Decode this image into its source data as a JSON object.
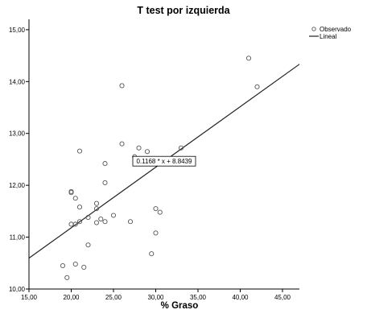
{
  "chart_data": {
    "type": "scatter",
    "title": "T test por izquierda",
    "xlabel": "% Graso",
    "ylabel": "",
    "xlim": [
      15,
      47
    ],
    "ylim": [
      10,
      15.2
    ],
    "x_ticks": [
      "15,00",
      "20,00",
      "25,00",
      "30,00",
      "35,00",
      "40,00",
      "45,00"
    ],
    "y_ticks": [
      "10,00",
      "11,00",
      "12,00",
      "13,00",
      "14,00",
      "15,00"
    ],
    "x_tick_values": [
      15,
      20,
      25,
      30,
      35,
      40,
      45
    ],
    "y_tick_values": [
      10,
      11,
      12,
      13,
      14,
      15
    ],
    "grid": false,
    "legend_position": "top-right",
    "legend": [
      {
        "label": "Observado",
        "marker": "circle"
      },
      {
        "label": "Lineal",
        "marker": "line"
      }
    ],
    "series": [
      {
        "name": "Observado",
        "points": [
          [
            19.0,
            10.45
          ],
          [
            19.5,
            10.22
          ],
          [
            20.0,
            11.25
          ],
          [
            20.0,
            11.88
          ],
          [
            20.0,
            11.86
          ],
          [
            20.5,
            11.75
          ],
          [
            20.5,
            10.48
          ],
          [
            20.5,
            11.25
          ],
          [
            21.0,
            11.3
          ],
          [
            21.0,
            11.58
          ],
          [
            21.0,
            12.66
          ],
          [
            21.5,
            10.42
          ],
          [
            22.0,
            10.85
          ],
          [
            22.0,
            11.38
          ],
          [
            23.0,
            11.28
          ],
          [
            23.0,
            11.55
          ],
          [
            23.0,
            11.65
          ],
          [
            23.5,
            11.35
          ],
          [
            24.0,
            11.3
          ],
          [
            24.0,
            12.05
          ],
          [
            24.0,
            12.42
          ],
          [
            25.0,
            11.42
          ],
          [
            26.0,
            12.8
          ],
          [
            26.0,
            13.92
          ],
          [
            27.0,
            11.3
          ],
          [
            27.5,
            12.55
          ],
          [
            28.0,
            12.72
          ],
          [
            29.0,
            12.65
          ],
          [
            29.5,
            10.68
          ],
          [
            30.0,
            11.08
          ],
          [
            30.0,
            11.55
          ],
          [
            30.5,
            11.48
          ],
          [
            33.0,
            12.72
          ],
          [
            41.0,
            14.45
          ],
          [
            42.0,
            13.9
          ]
        ]
      },
      {
        "name": "Lineal",
        "fit": {
          "slope": 0.1168,
          "intercept": 8.8439
        }
      }
    ],
    "annotations": [
      {
        "text": "0.1168 * x + 8.8439",
        "at_x": 31.0
      }
    ]
  }
}
